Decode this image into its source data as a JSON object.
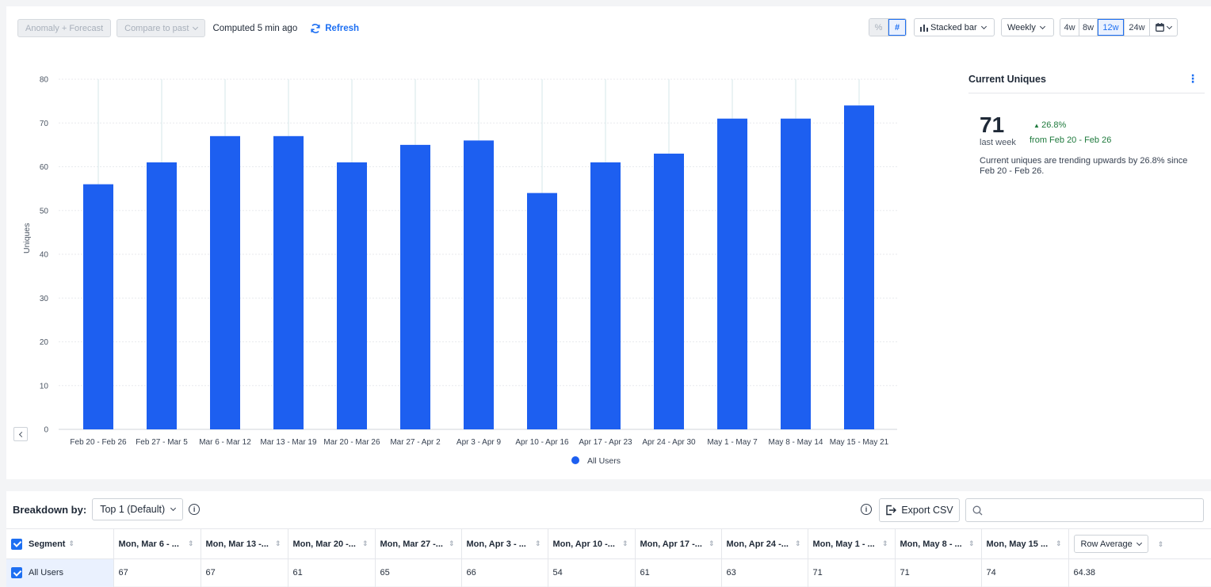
{
  "toolbar": {
    "anomaly_forecast": "Anomaly + Forecast",
    "compare_to_past": "Compare to past",
    "computed": "Computed 5 min ago",
    "refresh": "Refresh",
    "percent_toggle": "%",
    "number_toggle": "#",
    "chart_type": "Stacked bar",
    "interval": "Weekly",
    "ranges": [
      "4w",
      "8w",
      "12w",
      "24w"
    ],
    "active_range": "12w"
  },
  "chart_data": {
    "type": "bar",
    "categories": [
      "Feb 20 - Feb 26",
      "Feb 27 - Mar 5",
      "Mar 6 - Mar 12",
      "Mar 13 - Mar 19",
      "Mar 20 - Mar 26",
      "Mar 27 - Apr 2",
      "Apr 3 - Apr 9",
      "Apr 10 - Apr 16",
      "Apr 17 - Apr 23",
      "Apr 24 - Apr 30",
      "May 1 - May 7",
      "May 8 - May 14",
      "May 15 - May 21"
    ],
    "series": [
      {
        "name": "All Users",
        "values": [
          56,
          61,
          67,
          67,
          61,
          65,
          66,
          54,
          61,
          63,
          71,
          71,
          74
        ],
        "color": "#1d5ff0"
      }
    ],
    "ylabel": "Uniques",
    "ylim": [
      0,
      80
    ],
    "yticks": [
      0,
      10,
      20,
      30,
      40,
      50,
      60,
      70,
      80
    ],
    "grid": true,
    "legend": "bottom"
  },
  "summary": {
    "title": "Current Uniques",
    "value": "71",
    "value_sub": "last week",
    "change": "26.8%",
    "change_from": "from Feb 20 - Feb 26",
    "description": "Current uniques are trending upwards by 26.8% since Feb 20 - Feb 26.",
    "positive_color": "#1f7a3d"
  },
  "breakdown": {
    "label": "Breakdown by:",
    "selected": "Top 1 (Default)",
    "export": "Export CSV"
  },
  "table": {
    "headers": [
      "Segment",
      "Mon, Mar 6 - ...",
      "Mon, Mar 13 -...",
      "Mon, Mar 20 -...",
      "Mon, Mar 27 -...",
      "Mon, Apr 3 - ...",
      "Mon, Apr 10 -...",
      "Mon, Apr 17 -...",
      "Mon, Apr 24 -...",
      "Mon, May 1 - ...",
      "Mon, May 8 - ...",
      "Mon, May 15 ..."
    ],
    "row_average_label": "Row Average",
    "rows": [
      {
        "segment": "All Users",
        "values": [
          "67",
          "67",
          "61",
          "65",
          "66",
          "54",
          "61",
          "63",
          "71",
          "71",
          "74"
        ],
        "average": "64.38"
      }
    ]
  },
  "accent": "#1d6ff2"
}
